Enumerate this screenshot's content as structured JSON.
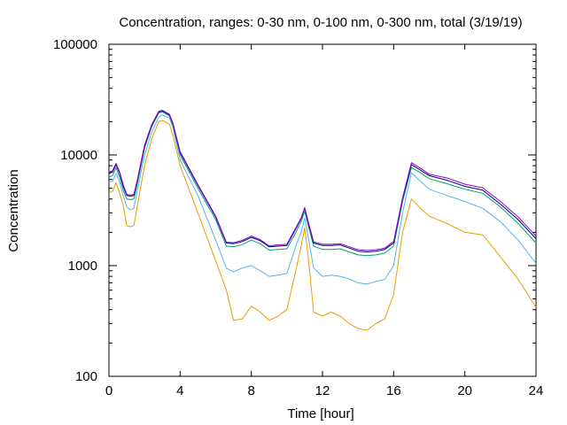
{
  "chart_data": {
    "type": "line",
    "title": "Concentration, ranges: 0-30 nm, 0-100 nm, 0-300 nm, total (3/19/19)",
    "xlabel": "Time [hour]",
    "ylabel": "Concentration",
    "xlim": [
      0,
      24
    ],
    "ylim": [
      100,
      100000
    ],
    "yscale": "log",
    "grid": false,
    "legend": "none",
    "x_ticks": [
      {
        "value": 0,
        "label": "0"
      },
      {
        "value": 4,
        "label": "4"
      },
      {
        "value": 8,
        "label": "8"
      },
      {
        "value": 12,
        "label": "12"
      },
      {
        "value": 16,
        "label": "16"
      },
      {
        "value": 20,
        "label": "20"
      },
      {
        "value": 24,
        "label": "24"
      }
    ],
    "y_ticks": [
      {
        "value": 100,
        "label": "100"
      },
      {
        "value": 1000,
        "label": "1000"
      },
      {
        "value": 10000,
        "label": "10000"
      },
      {
        "value": 100000,
        "label": "100000"
      }
    ],
    "series": [
      {
        "color": "#e69f00",
        "x": [
          0,
          0.2,
          0.4,
          0.6,
          0.8,
          1.0,
          1.2,
          1.4,
          1.6,
          2.0,
          2.4,
          2.8,
          3.0,
          3.4,
          3.6,
          4.0,
          5.0,
          6.0,
          6.6,
          7.0,
          7.5,
          8.0,
          8.5,
          9.0,
          9.5,
          10.0,
          10.5,
          10.8,
          11.0,
          11.2,
          11.5,
          12.0,
          12.5,
          13.0,
          13.5,
          14.0,
          14.5,
          15.0,
          15.5,
          16.0,
          16.5,
          17.0,
          17.5,
          18.0,
          19.0,
          20.0,
          21.0,
          22.0,
          23.0,
          24.0
        ],
        "values": [
          4500,
          4700,
          5600,
          4500,
          3500,
          2300,
          2250,
          2300,
          3500,
          8000,
          14000,
          20000,
          20500,
          19000,
          15000,
          8000,
          3000,
          1100,
          600,
          320,
          330,
          430,
          380,
          320,
          350,
          400,
          900,
          1500,
          2200,
          1200,
          380,
          350,
          380,
          350,
          300,
          270,
          260,
          300,
          330,
          550,
          2000,
          4000,
          3300,
          2800,
          2400,
          2000,
          1900,
          1200,
          750,
          420
        ]
      },
      {
        "color": "#56b4e9",
        "x": [
          0,
          0.2,
          0.4,
          0.6,
          0.8,
          1.0,
          1.2,
          1.4,
          1.6,
          2.0,
          2.4,
          2.8,
          3.0,
          3.4,
          3.6,
          4.0,
          5.0,
          6.0,
          6.6,
          7.0,
          7.5,
          8.0,
          8.5,
          9.0,
          9.5,
          10.0,
          10.5,
          10.8,
          11.0,
          11.2,
          11.5,
          12.0,
          12.5,
          13.0,
          13.5,
          14.0,
          14.5,
          15.0,
          15.5,
          16.0,
          16.5,
          17.0,
          17.5,
          18.0,
          19.0,
          20.0,
          21.0,
          22.0,
          23.0,
          24.0
        ],
        "values": [
          5700,
          5800,
          6800,
          5700,
          4300,
          3400,
          3200,
          3300,
          4800,
          10000,
          16000,
          22000,
          23000,
          21500,
          17500,
          9000,
          4300,
          1700,
          950,
          880,
          950,
          1000,
          900,
          800,
          820,
          850,
          1500,
          2000,
          2700,
          1800,
          950,
          800,
          820,
          800,
          760,
          700,
          680,
          720,
          750,
          1000,
          3000,
          6900,
          5800,
          4900,
          4300,
          3800,
          3300,
          2500,
          1700,
          1050
        ]
      },
      {
        "color": "#009e73",
        "x": [
          0,
          0.2,
          0.4,
          0.6,
          0.8,
          1.0,
          1.2,
          1.4,
          1.6,
          2.0,
          2.4,
          2.8,
          3.0,
          3.4,
          3.6,
          4.0,
          5.0,
          6.0,
          6.6,
          7.0,
          7.5,
          8.0,
          8.5,
          9.0,
          9.5,
          10.0,
          10.5,
          10.8,
          11.0,
          11.2,
          11.5,
          12.0,
          12.5,
          13.0,
          13.5,
          14.0,
          14.5,
          15.0,
          15.5,
          16.0,
          16.5,
          17.0,
          17.5,
          18.0,
          19.0,
          20.0,
          21.0,
          22.0,
          23.0,
          24.0
        ],
        "values": [
          6300,
          6500,
          7700,
          6300,
          4800,
          4000,
          3950,
          4000,
          5500,
          11500,
          18000,
          24000,
          24500,
          22500,
          18500,
          10000,
          5000,
          2600,
          1500,
          1480,
          1550,
          1700,
          1580,
          1380,
          1400,
          1420,
          2000,
          2500,
          3100,
          2300,
          1500,
          1400,
          1400,
          1420,
          1330,
          1250,
          1230,
          1250,
          1300,
          1500,
          3800,
          7700,
          6900,
          6100,
          5500,
          4900,
          4500,
          3400,
          2400,
          1600
        ]
      },
      {
        "color": "#000080",
        "x": [
          0,
          0.2,
          0.4,
          0.6,
          0.8,
          1.0,
          1.2,
          1.4,
          1.6,
          2.0,
          2.4,
          2.8,
          3.0,
          3.4,
          3.6,
          4.0,
          5.0,
          6.0,
          6.6,
          7.0,
          7.5,
          8.0,
          8.5,
          9.0,
          9.5,
          10.0,
          10.5,
          10.8,
          11.0,
          11.2,
          11.5,
          12.0,
          12.5,
          13.0,
          13.5,
          14.0,
          14.5,
          15.0,
          15.5,
          16.0,
          16.5,
          17.0,
          17.5,
          18.0,
          19.0,
          20.0,
          21.0,
          22.0,
          23.0,
          24.0
        ],
        "values": [
          6800,
          7000,
          8200,
          6800,
          5200,
          4300,
          4250,
          4300,
          5900,
          12000,
          18500,
          24500,
          25000,
          23000,
          19000,
          10500,
          5300,
          2750,
          1600,
          1580,
          1650,
          1800,
          1680,
          1480,
          1500,
          1520,
          2150,
          2650,
          3300,
          2450,
          1600,
          1520,
          1520,
          1540,
          1440,
          1350,
          1330,
          1350,
          1400,
          1600,
          4000,
          8200,
          7300,
          6500,
          5900,
          5200,
          4800,
          3600,
          2600,
          1750
        ]
      },
      {
        "color": "#9400d3",
        "x": [
          0,
          0.2,
          0.4,
          0.6,
          0.8,
          1.0,
          1.2,
          1.4,
          1.6,
          2.0,
          2.4,
          2.8,
          3.0,
          3.4,
          3.6,
          4.0,
          5.0,
          6.0,
          6.6,
          7.0,
          7.5,
          8.0,
          8.5,
          9.0,
          9.5,
          10.0,
          10.5,
          10.8,
          11.0,
          11.2,
          11.5,
          12.0,
          12.5,
          13.0,
          13.5,
          14.0,
          14.5,
          15.0,
          15.5,
          16.0,
          16.5,
          17.0,
          17.5,
          18.0,
          19.0,
          20.0,
          21.0,
          22.0,
          23.0,
          24.0
        ],
        "values": [
          7000,
          7200,
          8400,
          7000,
          5400,
          4400,
          4350,
          4400,
          6000,
          12300,
          18800,
          24800,
          25300,
          23300,
          19300,
          10700,
          5400,
          2800,
          1630,
          1610,
          1690,
          1850,
          1720,
          1510,
          1540,
          1560,
          2200,
          2700,
          3350,
          2500,
          1640,
          1560,
          1560,
          1580,
          1480,
          1390,
          1370,
          1390,
          1440,
          1650,
          4100,
          8500,
          7600,
          6700,
          6200,
          5450,
          5050,
          3800,
          2750,
          1850
        ]
      }
    ]
  }
}
